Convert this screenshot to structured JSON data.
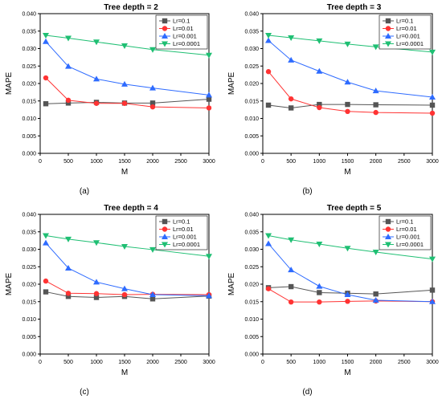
{
  "legend_labels": [
    "Lr=0.1",
    "Lr=0.01",
    "Lr=0.001",
    "Lr=0.0001"
  ],
  "series_colors": [
    "#555555",
    "#ff3333",
    "#2e6bff",
    "#1fbf73"
  ],
  "series_markers": [
    "square",
    "circle",
    "triangle-up",
    "triangle-down"
  ],
  "chart_data": [
    {
      "type": "line",
      "title": "Tree depth = 2",
      "panel_label": "(a)",
      "xlabel": "M",
      "ylabel": "MAPE",
      "xlim": [
        0,
        3000
      ],
      "ylim": [
        0,
        0.04
      ],
      "xticks": [
        0,
        500,
        1000,
        1500,
        2000,
        2500,
        3000
      ],
      "yticks": [
        0.0,
        0.005,
        0.01,
        0.015,
        0.02,
        0.025,
        0.03,
        0.035,
        0.04
      ],
      "ytick_labels": [
        "0.000",
        "0.005",
        "0.010",
        "0.015",
        "0.020",
        "0.025",
        "0.030",
        "0.035",
        "0.040"
      ],
      "legend_position": "top-right",
      "x": [
        100,
        500,
        1000,
        1500,
        2000,
        3000
      ],
      "series": [
        {
          "name": "Lr=0.1",
          "values": [
            0.0142,
            0.0144,
            0.0146,
            0.0144,
            0.0144,
            0.0155
          ]
        },
        {
          "name": "Lr=0.01",
          "values": [
            0.0216,
            0.0152,
            0.0143,
            0.0143,
            0.0133,
            0.013
          ]
        },
        {
          "name": "Lr=0.001",
          "values": [
            0.032,
            0.0249,
            0.0213,
            0.0198,
            0.0187,
            0.0167
          ]
        },
        {
          "name": "Lr=0.0001",
          "values": [
            0.0338,
            0.033,
            0.0319,
            0.0308,
            0.0297,
            0.0281
          ]
        }
      ]
    },
    {
      "type": "line",
      "title": "Tree depth = 3",
      "panel_label": "(b)",
      "xlabel": "M",
      "ylabel": "MAPE",
      "xlim": [
        0,
        3000
      ],
      "ylim": [
        0,
        0.04
      ],
      "xticks": [
        0,
        500,
        1000,
        1500,
        2000,
        2500,
        3000
      ],
      "yticks": [
        0.0,
        0.005,
        0.01,
        0.015,
        0.02,
        0.025,
        0.03,
        0.035,
        0.04
      ],
      "ytick_labels": [
        "0.000",
        "0.005",
        "0.010",
        "0.015",
        "0.020",
        "0.025",
        "0.030",
        "0.035",
        "0.040"
      ],
      "legend_position": "top-right",
      "x": [
        100,
        500,
        1000,
        1500,
        2000,
        3000
      ],
      "series": [
        {
          "name": "Lr=0.1",
          "values": [
            0.0138,
            0.013,
            0.014,
            0.014,
            0.0139,
            0.0138
          ]
        },
        {
          "name": "Lr=0.01",
          "values": [
            0.0234,
            0.0156,
            0.0131,
            0.012,
            0.0117,
            0.0115
          ]
        },
        {
          "name": "Lr=0.001",
          "values": [
            0.0323,
            0.0267,
            0.0235,
            0.0204,
            0.0179,
            0.0161
          ]
        },
        {
          "name": "Lr=0.0001",
          "values": [
            0.0338,
            0.0331,
            0.0322,
            0.0313,
            0.0305,
            0.029
          ]
        }
      ]
    },
    {
      "type": "line",
      "title": "Tree depth = 4",
      "panel_label": "(c)",
      "xlabel": "M",
      "ylabel": "MAPE",
      "xlim": [
        0,
        3000
      ],
      "ylim": [
        0,
        0.04
      ],
      "xticks": [
        0,
        500,
        1000,
        1500,
        2000,
        2500,
        3000
      ],
      "yticks": [
        0.0,
        0.005,
        0.01,
        0.015,
        0.02,
        0.025,
        0.03,
        0.035,
        0.04
      ],
      "ytick_labels": [
        "0.000",
        "0.005",
        "0.010",
        "0.015",
        "0.020",
        "0.025",
        "0.030",
        "0.035",
        "0.040"
      ],
      "legend_position": "top-right",
      "x": [
        100,
        500,
        1000,
        1500,
        2000,
        3000
      ],
      "series": [
        {
          "name": "Lr=0.1",
          "values": [
            0.0178,
            0.0165,
            0.0162,
            0.0165,
            0.0158,
            0.0166
          ]
        },
        {
          "name": "Lr=0.01",
          "values": [
            0.0209,
            0.0174,
            0.0173,
            0.017,
            0.0171,
            0.017
          ]
        },
        {
          "name": "Lr=0.001",
          "values": [
            0.0318,
            0.0246,
            0.0206,
            0.0187,
            0.017,
            0.0167
          ]
        },
        {
          "name": "Lr=0.0001",
          "values": [
            0.0339,
            0.0329,
            0.0319,
            0.0308,
            0.0299,
            0.028
          ]
        }
      ]
    },
    {
      "type": "line",
      "title": "Tree depth = 5",
      "panel_label": "(d)",
      "xlabel": "M",
      "ylabel": "MAPE",
      "xlim": [
        0,
        3000
      ],
      "ylim": [
        0,
        0.04
      ],
      "xticks": [
        0,
        500,
        1000,
        1500,
        2000,
        2500,
        3000
      ],
      "yticks": [
        0.0,
        0.005,
        0.01,
        0.015,
        0.02,
        0.025,
        0.03,
        0.035,
        0.04
      ],
      "ytick_labels": [
        "0.000",
        "0.005",
        "0.010",
        "0.015",
        "0.020",
        "0.025",
        "0.030",
        "0.035",
        "0.040"
      ],
      "legend_position": "top-right",
      "x": [
        100,
        500,
        1000,
        1500,
        2000,
        3000
      ],
      "series": [
        {
          "name": "Lr=0.1",
          "values": [
            0.019,
            0.0193,
            0.0176,
            0.0174,
            0.0172,
            0.0183
          ]
        },
        {
          "name": "Lr=0.01",
          "values": [
            0.0187,
            0.0149,
            0.0149,
            0.0151,
            0.0152,
            0.015
          ]
        },
        {
          "name": "Lr=0.001",
          "values": [
            0.0316,
            0.0241,
            0.0194,
            0.017,
            0.0154,
            0.015
          ]
        },
        {
          "name": "Lr=0.0001",
          "values": [
            0.0339,
            0.0327,
            0.0315,
            0.0303,
            0.0292,
            0.0272
          ]
        }
      ]
    }
  ]
}
